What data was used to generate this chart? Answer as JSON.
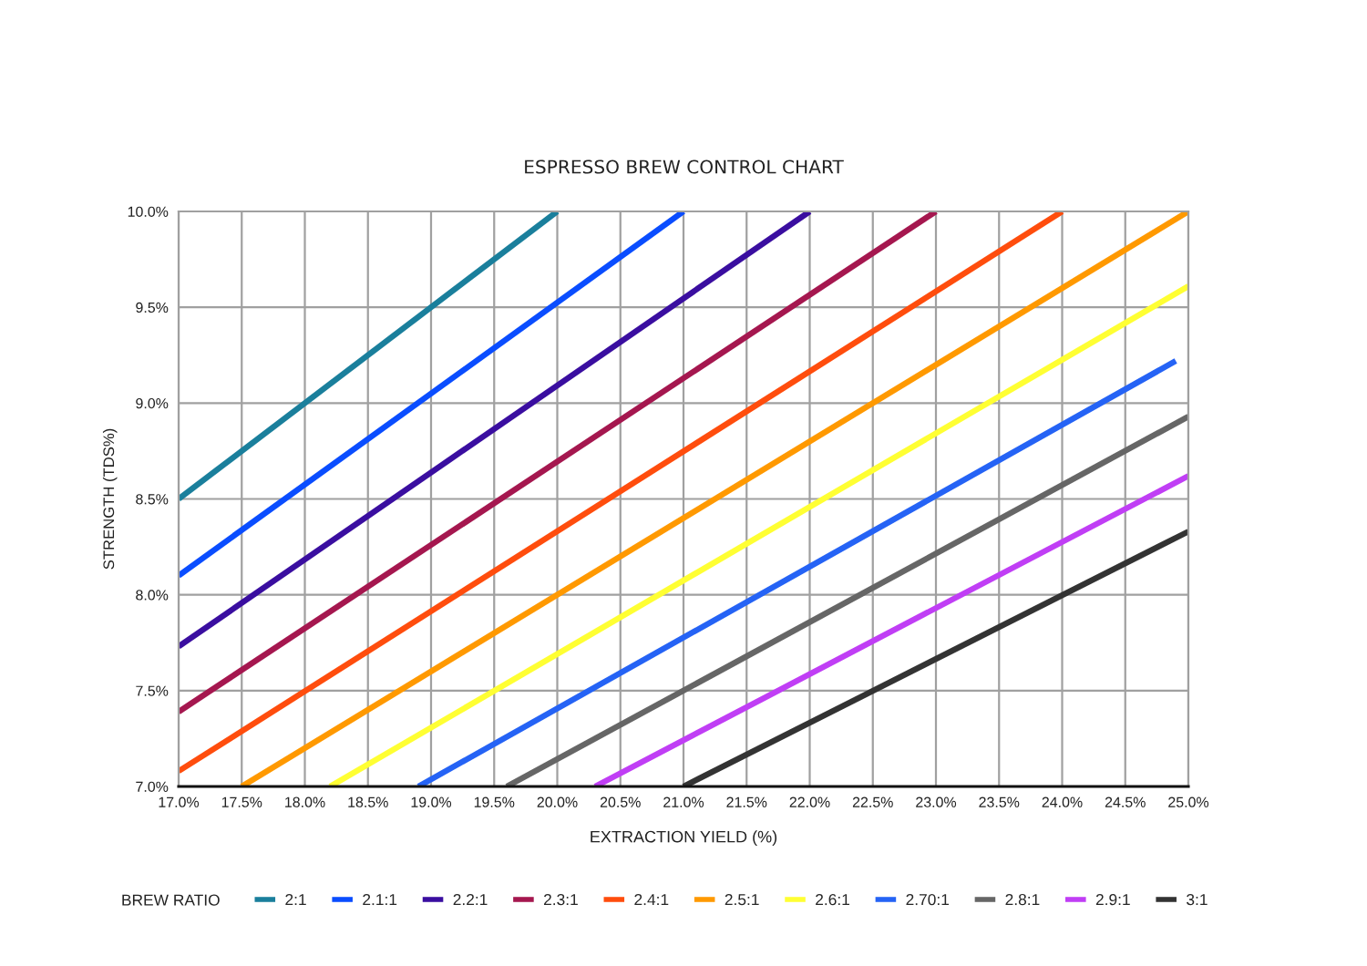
{
  "chart_data": {
    "type": "line",
    "title": "ESPRESSO BREW CONTROL CHART",
    "xlabel": "EXTRACTION YIELD (%)",
    "ylabel": "STRENGTH (TDS%)",
    "legend_title": "BREW RATIO",
    "legend": "bottom",
    "grid": true,
    "line_style": "solid",
    "xlim": [
      17.0,
      25.0
    ],
    "ylim": [
      7.0,
      10.0
    ],
    "xticks": [
      {
        "value": 17.0,
        "label": "17.0%"
      },
      {
        "value": 17.5,
        "label": "17.5%"
      },
      {
        "value": 18.0,
        "label": "18.0%"
      },
      {
        "value": 18.5,
        "label": "18.5%"
      },
      {
        "value": 19.0,
        "label": "19.0%"
      },
      {
        "value": 19.5,
        "label": "19.5%"
      },
      {
        "value": 20.0,
        "label": "20.0%"
      },
      {
        "value": 20.5,
        "label": "20.5%"
      },
      {
        "value": 21.0,
        "label": "21.0%"
      },
      {
        "value": 21.5,
        "label": "21.5%"
      },
      {
        "value": 22.0,
        "label": "22.0%"
      },
      {
        "value": 22.5,
        "label": "22.5%"
      },
      {
        "value": 23.0,
        "label": "23.0%"
      },
      {
        "value": 23.5,
        "label": "23.5%"
      },
      {
        "value": 24.0,
        "label": "24.0%"
      },
      {
        "value": 24.5,
        "label": "24.5%"
      },
      {
        "value": 25.0,
        "label": "25.0%"
      }
    ],
    "yticks": [
      {
        "value": 7.0,
        "label": "7.0%"
      },
      {
        "value": 7.5,
        "label": "7.5%"
      },
      {
        "value": 8.0,
        "label": "8.0%"
      },
      {
        "value": 8.5,
        "label": "8.5%"
      },
      {
        "value": 9.0,
        "label": "9.0%"
      },
      {
        "value": 9.5,
        "label": "9.5%"
      },
      {
        "value": 10.0,
        "label": "10.0%"
      }
    ],
    "series": [
      {
        "name": "2:1",
        "color": "#1a7f9c",
        "x": [
          17.0,
          20.0
        ],
        "values": [
          8.5,
          10.0
        ]
      },
      {
        "name": "2.1:1",
        "color": "#0a4dff",
        "x": [
          17.0,
          21.0
        ],
        "values": [
          8.1,
          10.0
        ]
      },
      {
        "name": "2.2:1",
        "color": "#3a0ea0",
        "x": [
          17.0,
          22.0
        ],
        "values": [
          7.73,
          10.0
        ]
      },
      {
        "name": "2.3:1",
        "color": "#a5174f",
        "x": [
          17.0,
          23.0
        ],
        "values": [
          7.39,
          10.0
        ]
      },
      {
        "name": "2.4:1",
        "color": "#ff4d0d",
        "x": [
          17.0,
          24.0
        ],
        "values": [
          7.08,
          10.0
        ]
      },
      {
        "name": "2.5:1",
        "color": "#ff9900",
        "x": [
          17.5,
          25.0
        ],
        "values": [
          7.0,
          10.0
        ]
      },
      {
        "name": "2.6:1",
        "color": "#ffff33",
        "x": [
          18.2,
          25.0
        ],
        "values": [
          7.0,
          9.61
        ]
      },
      {
        "name": "2.70:1",
        "color": "#2563f5",
        "x": [
          18.9,
          24.9
        ],
        "values": [
          7.0,
          9.22
        ]
      },
      {
        "name": "2.8:1",
        "color": "#666666",
        "x": [
          19.6,
          25.0
        ],
        "values": [
          7.0,
          8.93
        ]
      },
      {
        "name": "2.9:1",
        "color": "#c03ef5",
        "x": [
          20.3,
          25.0
        ],
        "values": [
          7.0,
          8.62
        ]
      },
      {
        "name": "3:1",
        "color": "#333333",
        "x": [
          21.0,
          25.0
        ],
        "values": [
          7.0,
          8.33
        ]
      }
    ]
  }
}
